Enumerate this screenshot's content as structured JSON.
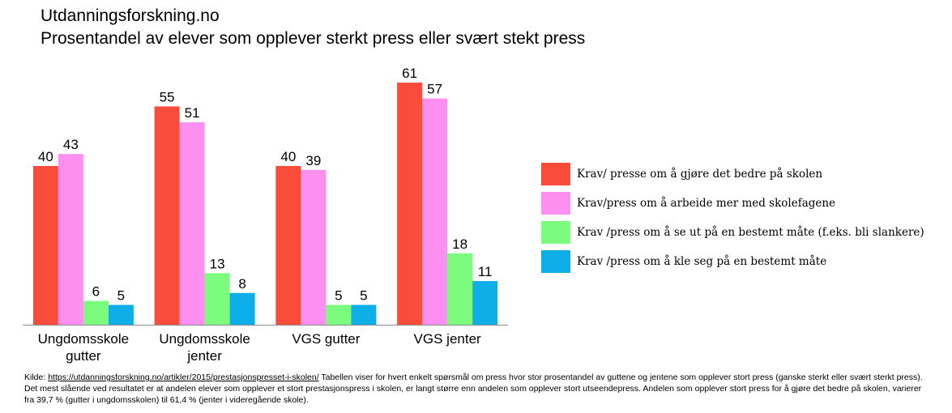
{
  "header": {
    "title": "Utdanningsforskning.no",
    "subtitle": "Prosentandel av elever som opplever sterkt press eller svært stekt press"
  },
  "chart_data": {
    "type": "bar",
    "categories": [
      [
        "Ungdomsskole",
        "gutter"
      ],
      [
        "Ungdomsskole",
        "jenter"
      ],
      [
        "VGS gutter"
      ],
      [
        "VGS jenter"
      ]
    ],
    "series": [
      {
        "name": "Krav/ presse om å gjøre det bedre på skolen",
        "color": "#f94c3a",
        "values": [
          40,
          55,
          40,
          61
        ]
      },
      {
        "name": "Krav/press om å arbeide mer med skolefagene",
        "color": "#fc8ff0",
        "values": [
          43,
          51,
          39,
          57
        ]
      },
      {
        "name": "Krav /press om å se ut på en bestemt måte (f.eks. bli slankere)",
        "color": "#7dfb7f",
        "values": [
          6,
          13,
          5,
          18
        ]
      },
      {
        "name": "Krav /press om å kle seg på en bestemt måte",
        "color": "#0eaee8",
        "values": [
          5,
          8,
          5,
          11
        ]
      }
    ],
    "ylim": [
      0,
      61
    ],
    "grid": false,
    "data_labels": true,
    "legend_position": "right"
  },
  "footnote": {
    "prefix": "Kilde: ",
    "link": "https://utdanningsforskning.no/artikler/2015/prestasjonspresset-i-skolen/",
    "text": " Tabellen viser for hvert enkelt spørsmål om press hvor stor prosentandel av guttene og jentene som opplever stort press (ganske sterkt eller svært sterkt press). Det mest slående ved resultatet er at andelen elever som opplever et stort prestasjonspress i skolen, er langt større enn andelen som opplever stort utseendepress. Andelen som opplever stort press for å gjøre det bedre på skolen, varierer fra 39,7 % (gutter i ungdomsskolen) til 61,4 % (jenter i videregående skole)."
  }
}
